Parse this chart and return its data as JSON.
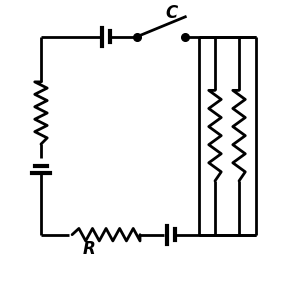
{
  "bg_color": "#ffffff",
  "line_color": "#000000",
  "line_width": 2.0,
  "label_C": "C",
  "label_R": "R",
  "fig_width": 2.97,
  "fig_height": 2.87
}
